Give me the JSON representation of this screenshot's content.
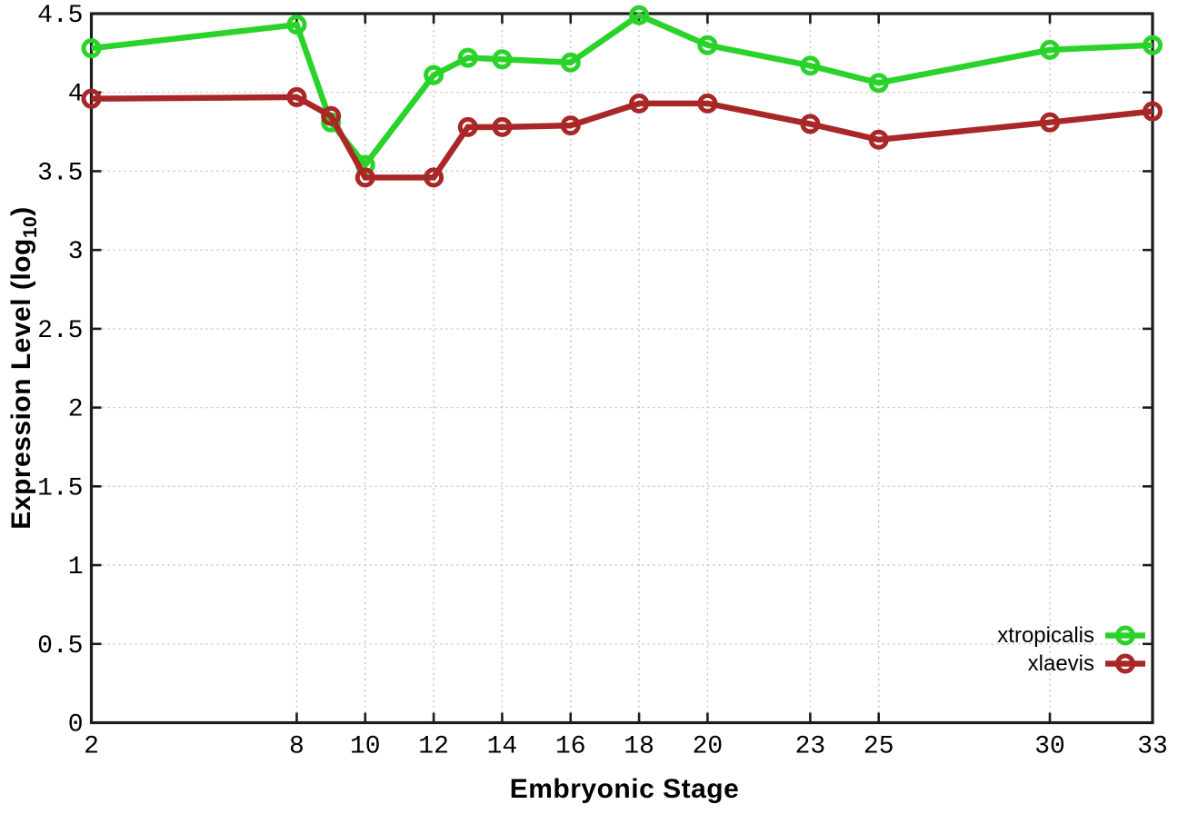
{
  "axes": {
    "x_title": "Embryonic Stage",
    "y_title_main": "Expression Level (log",
    "y_title_sub": "10",
    "y_title_close": ")"
  },
  "style": {
    "axis_color": "#1c1c1c",
    "grid_color": "#c2c4cc",
    "tick_label_color": "#000000"
  },
  "chart_data": {
    "type": "line",
    "title": "",
    "xlabel": "Embryonic Stage",
    "ylabel": "Expression Level (log10)",
    "xlim": [
      2,
      33
    ],
    "ylim": [
      0,
      4.5
    ],
    "x_ticks": [
      2,
      8,
      10,
      12,
      14,
      16,
      18,
      20,
      23,
      25,
      30,
      33
    ],
    "y_ticks": [
      0,
      0.5,
      1,
      1.5,
      2,
      2.5,
      3,
      3.5,
      4,
      4.5
    ],
    "grid": true,
    "legend_position": "bottom-right",
    "x": [
      2,
      8,
      9,
      10,
      12,
      13,
      14,
      16,
      18,
      20,
      23,
      25,
      30,
      33
    ],
    "series": [
      {
        "name": "xtropicalis",
        "color": "#2ad32a",
        "values": [
          4.28,
          4.43,
          3.81,
          3.54,
          4.11,
          4.22,
          4.21,
          4.19,
          4.49,
          4.3,
          4.17,
          4.06,
          4.27,
          4.3
        ]
      },
      {
        "name": "xlaevis",
        "color": "#a92727",
        "values": [
          3.96,
          3.97,
          3.85,
          3.46,
          3.46,
          3.78,
          3.78,
          3.79,
          3.93,
          3.93,
          3.8,
          3.7,
          3.81,
          3.88
        ]
      }
    ]
  }
}
